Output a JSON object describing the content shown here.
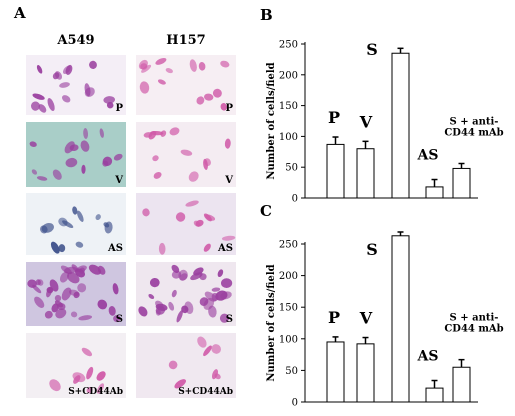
{
  "panel_a": {
    "letter": "A",
    "columns": [
      {
        "name": "A549",
        "labels": [
          "P",
          "V",
          "AS",
          "S",
          "S+CD44Ab"
        ]
      },
      {
        "name": "H157",
        "labels": [
          "P",
          "V",
          "AS",
          "S",
          "S+CD44Ab"
        ]
      }
    ],
    "colors": {
      "purple_stain": "#9a3f9f",
      "pink_stain": "#d05aa8",
      "blue_stain": "#3d4f8a",
      "teal_bg": "#b8d8cf",
      "light_bg": "#f6f0f6"
    }
  },
  "chart_data": [
    {
      "panel": "B",
      "type": "bar",
      "ylabel": "Number of cells/field",
      "ylim": [
        0,
        250
      ],
      "yticks": [
        0,
        50,
        100,
        150,
        200,
        250
      ],
      "categories": [
        "P",
        "V",
        "S",
        "AS",
        "S + anti-CD44 mAb"
      ],
      "category_labels": [
        "P",
        "V",
        "S",
        "AS",
        "S + anti-\nCD44 mAb"
      ],
      "values": [
        87,
        80,
        235,
        18,
        48
      ],
      "errors": [
        12,
        12,
        8,
        12,
        8
      ],
      "bar_color": "#ffffff",
      "edge_color": "#000000"
    },
    {
      "panel": "C",
      "type": "bar",
      "ylabel": "Number of cells/field",
      "ylim": [
        0,
        250
      ],
      "yticks": [
        0,
        50,
        100,
        150,
        200,
        250
      ],
      "categories": [
        "P",
        "V",
        "S",
        "AS",
        "S + anti-CD44 mAb"
      ],
      "category_labels": [
        "P",
        "V",
        "S",
        "AS",
        "S + anti-\nCD44 mAb"
      ],
      "values": [
        95,
        92,
        263,
        22,
        55
      ],
      "errors": [
        8,
        10,
        6,
        12,
        12
      ],
      "bar_color": "#ffffff",
      "edge_color": "#000000"
    }
  ]
}
